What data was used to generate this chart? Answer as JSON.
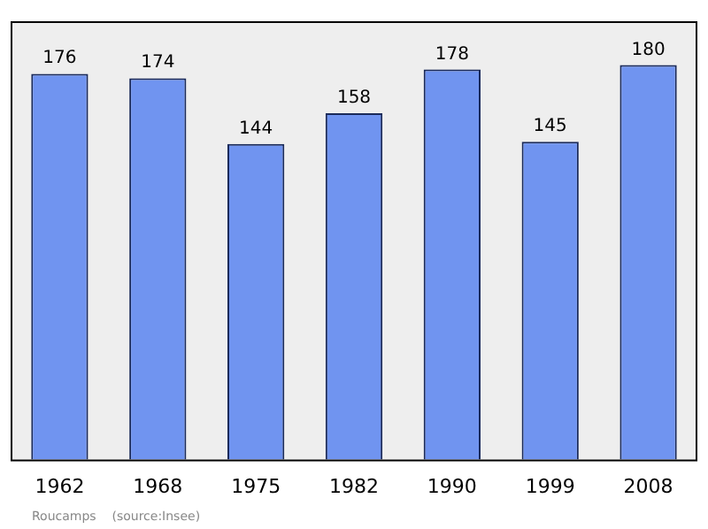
{
  "chart_data": {
    "type": "bar",
    "categories": [
      "1962",
      "1968",
      "1975",
      "1982",
      "1990",
      "1999",
      "2008"
    ],
    "values": [
      176,
      174,
      144,
      158,
      178,
      145,
      180
    ],
    "color": "#7094f0",
    "ylim": [
      0,
      200
    ],
    "data_labels": true,
    "grid": false,
    "legend": false,
    "annotations": [
      "Roucamps    (source:Insee)"
    ]
  }
}
